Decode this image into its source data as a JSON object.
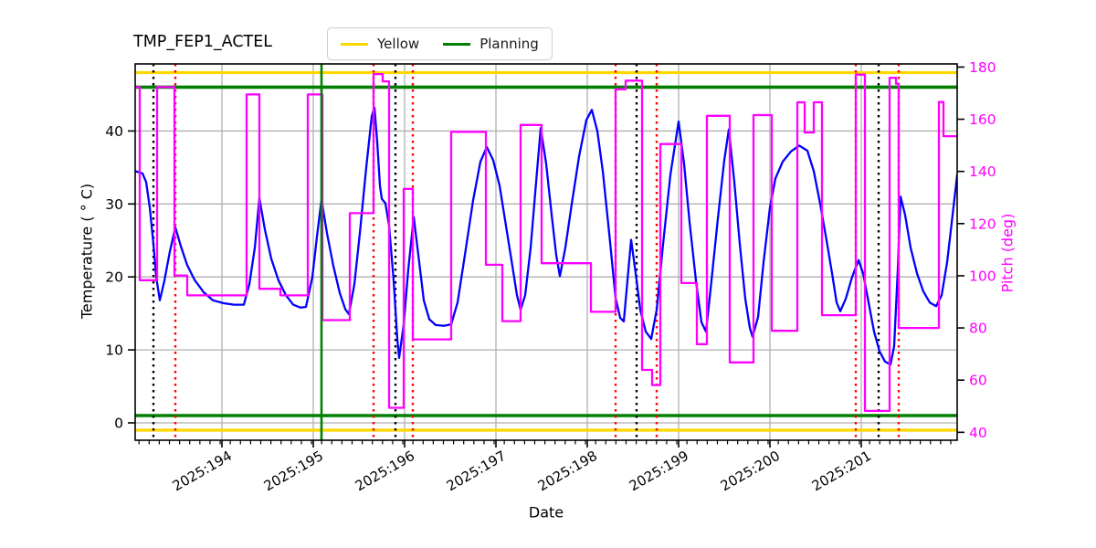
{
  "chart_data": {
    "type": "line",
    "title": "TMP_FEP1_ACTEL",
    "xlabel": "Date",
    "ylabel_left": "Temperature ( ° C)",
    "ylabel_right": "Pitch (deg)",
    "grid": true,
    "legend_position": "top-center",
    "legend": [
      {
        "label": "Yellow",
        "color": "#ffd700"
      },
      {
        "label": "Planning",
        "color": "#008000"
      }
    ],
    "colors": {
      "temperature_series": "#0000ff",
      "pitch_series": "#ff00ff",
      "yellow_limit": "#ffd700",
      "planning_limit": "#008000",
      "grid": "#b0b0b0",
      "vline_black": "#000000",
      "vline_red": "#ff0000",
      "vline_green": "#008000",
      "right_axis_text": "#ff00ff"
    },
    "x_domain": [
      193.05,
      202.05
    ],
    "y_left_domain": [
      -2.38,
      49.19
    ],
    "y_right_domain": [
      36.96,
      181.2
    ],
    "x_ticks": [
      {
        "day": 194,
        "label": "2025:194"
      },
      {
        "day": 195,
        "label": "2025:195"
      },
      {
        "day": 196,
        "label": "2025:196"
      },
      {
        "day": 197,
        "label": "2025:197"
      },
      {
        "day": 198,
        "label": "2025:198"
      },
      {
        "day": 199,
        "label": "2025:199"
      },
      {
        "day": 200,
        "label": "2025:200"
      },
      {
        "day": 201,
        "label": "2025:201"
      }
    ],
    "x_minor_step": 0.1111,
    "y_left_ticks": [
      0,
      10,
      20,
      30,
      40
    ],
    "y_right_ticks": [
      40,
      60,
      80,
      100,
      120,
      140,
      160,
      180
    ],
    "limit_lines": [
      {
        "name": "yellow-high",
        "value": 48.0,
        "axis": "left",
        "color": "#ffd700",
        "width": 3.2
      },
      {
        "name": "planning-high",
        "value": 46.0,
        "axis": "left",
        "color": "#008000",
        "width": 3.6
      },
      {
        "name": "planning-low",
        "value": 1.0,
        "axis": "left",
        "color": "#008000",
        "width": 3.6
      },
      {
        "name": "yellow-low",
        "value": -1.0,
        "axis": "left",
        "color": "#ffd700",
        "width": 3.2
      }
    ],
    "vlines_dotted": [
      {
        "day": 193.25,
        "color": "#000000"
      },
      {
        "day": 193.49,
        "color": "#ff0000"
      },
      {
        "day": 195.66,
        "color": "#ff0000"
      },
      {
        "day": 195.9,
        "color": "#000000"
      },
      {
        "day": 196.09,
        "color": "#ff0000"
      },
      {
        "day": 198.31,
        "color": "#ff0000"
      },
      {
        "day": 198.54,
        "color": "#000000"
      },
      {
        "day": 198.76,
        "color": "#ff0000"
      },
      {
        "day": 200.94,
        "color": "#ff0000"
      },
      {
        "day": 201.19,
        "color": "#000000"
      },
      {
        "day": 201.41,
        "color": "#ff0000"
      }
    ],
    "vline_solid_green": {
      "day": 195.09,
      "color": "#008000"
    },
    "series": [
      {
        "name": "Temperature",
        "axis": "left",
        "color": "#0000ff",
        "points": [
          [
            193.05,
            34.5
          ],
          [
            193.13,
            34.2
          ],
          [
            193.17,
            33.0
          ],
          [
            193.21,
            29.5
          ],
          [
            193.25,
            24.5
          ],
          [
            193.28,
            20.0
          ],
          [
            193.32,
            16.8
          ],
          [
            193.37,
            19.5
          ],
          [
            193.43,
            23.5
          ],
          [
            193.49,
            26.8
          ],
          [
            193.55,
            24.2
          ],
          [
            193.62,
            21.6
          ],
          [
            193.7,
            19.6
          ],
          [
            193.8,
            17.9
          ],
          [
            193.9,
            16.8
          ],
          [
            194.02,
            16.4
          ],
          [
            194.13,
            16.2
          ],
          [
            194.24,
            16.2
          ],
          [
            194.3,
            19.0
          ],
          [
            194.36,
            24.0
          ],
          [
            194.41,
            30.8
          ],
          [
            194.47,
            26.5
          ],
          [
            194.54,
            22.5
          ],
          [
            194.62,
            19.5
          ],
          [
            194.7,
            17.5
          ],
          [
            194.78,
            16.2
          ],
          [
            194.86,
            15.8
          ],
          [
            194.92,
            15.9
          ],
          [
            194.99,
            20.0
          ],
          [
            195.04,
            25.5
          ],
          [
            195.09,
            30.6
          ],
          [
            195.15,
            26.0
          ],
          [
            195.22,
            21.5
          ],
          [
            195.29,
            17.8
          ],
          [
            195.35,
            15.6
          ],
          [
            195.39,
            14.9
          ],
          [
            195.45,
            19.0
          ],
          [
            195.51,
            26.0
          ],
          [
            195.58,
            35.0
          ],
          [
            195.64,
            42.0
          ],
          [
            195.67,
            43.2
          ],
          [
            195.7,
            38.5
          ],
          [
            195.73,
            32.5
          ],
          [
            195.75,
            30.7
          ],
          [
            195.79,
            30.1
          ],
          [
            195.83,
            27.0
          ],
          [
            195.88,
            19.5
          ],
          [
            195.92,
            11.5
          ],
          [
            195.94,
            8.9
          ],
          [
            195.99,
            13.5
          ],
          [
            196.04,
            21.0
          ],
          [
            196.1,
            28.2
          ],
          [
            196.16,
            22.0
          ],
          [
            196.21,
            16.8
          ],
          [
            196.27,
            14.2
          ],
          [
            196.34,
            13.4
          ],
          [
            196.43,
            13.3
          ],
          [
            196.51,
            13.5
          ],
          [
            196.58,
            16.5
          ],
          [
            196.66,
            23.0
          ],
          [
            196.75,
            30.5
          ],
          [
            196.83,
            35.8
          ],
          [
            196.9,
            37.8
          ],
          [
            196.97,
            36.0
          ],
          [
            197.04,
            32.5
          ],
          [
            197.11,
            27.0
          ],
          [
            197.18,
            21.5
          ],
          [
            197.23,
            17.5
          ],
          [
            197.27,
            15.5
          ],
          [
            197.32,
            17.5
          ],
          [
            197.38,
            24.0
          ],
          [
            197.44,
            33.0
          ],
          [
            197.49,
            40.4
          ],
          [
            197.55,
            35.5
          ],
          [
            197.61,
            28.5
          ],
          [
            197.66,
            23.0
          ],
          [
            197.7,
            20.1
          ],
          [
            197.76,
            24.0
          ],
          [
            197.83,
            30.0
          ],
          [
            197.91,
            36.5
          ],
          [
            197.99,
            41.5
          ],
          [
            198.05,
            42.9
          ],
          [
            198.11,
            40.0
          ],
          [
            198.17,
            34.5
          ],
          [
            198.24,
            26.0
          ],
          [
            198.31,
            17.1
          ],
          [
            198.36,
            14.4
          ],
          [
            198.4,
            13.9
          ],
          [
            198.44,
            19.5
          ],
          [
            198.48,
            25.1
          ],
          [
            198.53,
            20.5
          ],
          [
            198.58,
            15.5
          ],
          [
            198.64,
            12.5
          ],
          [
            198.7,
            11.5
          ],
          [
            198.76,
            15.5
          ],
          [
            198.83,
            24.5
          ],
          [
            198.91,
            34.0
          ],
          [
            199.0,
            41.3
          ],
          [
            199.06,
            35.5
          ],
          [
            199.12,
            27.5
          ],
          [
            199.19,
            19.5
          ],
          [
            199.25,
            13.8
          ],
          [
            199.3,
            12.5
          ],
          [
            199.36,
            19.5
          ],
          [
            199.43,
            28.0
          ],
          [
            199.5,
            36.0
          ],
          [
            199.55,
            40.2
          ],
          [
            199.61,
            33.0
          ],
          [
            199.67,
            24.5
          ],
          [
            199.73,
            17.0
          ],
          [
            199.78,
            13.0
          ],
          [
            199.81,
            11.8
          ],
          [
            199.87,
            14.5
          ],
          [
            199.93,
            22.0
          ],
          [
            200.0,
            29.5
          ],
          [
            200.06,
            33.5
          ],
          [
            200.14,
            35.8
          ],
          [
            200.23,
            37.2
          ],
          [
            200.32,
            38.0
          ],
          [
            200.41,
            37.3
          ],
          [
            200.48,
            34.5
          ],
          [
            200.55,
            30.0
          ],
          [
            200.62,
            25.0
          ],
          [
            200.68,
            20.5
          ],
          [
            200.73,
            16.5
          ],
          [
            200.77,
            15.3
          ],
          [
            200.83,
            17.0
          ],
          [
            200.9,
            20.0
          ],
          [
            200.97,
            22.3
          ],
          [
            201.02,
            20.5
          ],
          [
            201.08,
            16.5
          ],
          [
            201.14,
            12.5
          ],
          [
            201.2,
            9.8
          ],
          [
            201.26,
            8.4
          ],
          [
            201.32,
            8.0
          ],
          [
            201.36,
            10.5
          ],
          [
            201.4,
            21.0
          ],
          [
            201.43,
            31.0
          ],
          [
            201.48,
            28.5
          ],
          [
            201.54,
            24.0
          ],
          [
            201.61,
            20.5
          ],
          [
            201.68,
            18.0
          ],
          [
            201.75,
            16.5
          ],
          [
            201.82,
            16.0
          ],
          [
            201.88,
            17.5
          ],
          [
            201.94,
            22.0
          ],
          [
            202.0,
            28.5
          ],
          [
            202.05,
            34.0
          ]
        ]
      },
      {
        "name": "Pitch",
        "axis": "right",
        "color": "#ff00ff",
        "points": [
          [
            193.05,
            172.3
          ],
          [
            193.1,
            172.3
          ],
          [
            193.1,
            98.3
          ],
          [
            193.29,
            98.3
          ],
          [
            193.29,
            172.3
          ],
          [
            193.48,
            172.3
          ],
          [
            193.48,
            100.1
          ],
          [
            193.62,
            100.1
          ],
          [
            193.62,
            92.5
          ],
          [
            194.27,
            92.5
          ],
          [
            194.27,
            169.5
          ],
          [
            194.41,
            169.5
          ],
          [
            194.41,
            95.0
          ],
          [
            194.64,
            95.0
          ],
          [
            194.64,
            92.5
          ],
          [
            194.94,
            92.5
          ],
          [
            194.94,
            169.5
          ],
          [
            195.1,
            169.5
          ],
          [
            195.1,
            83.0
          ],
          [
            195.4,
            83.0
          ],
          [
            195.4,
            124.0
          ],
          [
            195.66,
            124.0
          ],
          [
            195.66,
            177.3
          ],
          [
            195.76,
            177.3
          ],
          [
            195.76,
            174.5
          ],
          [
            195.83,
            174.5
          ],
          [
            195.83,
            49.4
          ],
          [
            195.99,
            49.4
          ],
          [
            195.99,
            133.3
          ],
          [
            196.09,
            133.3
          ],
          [
            196.09,
            75.6
          ],
          [
            196.51,
            75.6
          ],
          [
            196.51,
            155.2
          ],
          [
            196.89,
            155.2
          ],
          [
            196.89,
            104.2
          ],
          [
            197.07,
            104.2
          ],
          [
            197.07,
            82.6
          ],
          [
            197.27,
            82.6
          ],
          [
            197.27,
            157.8
          ],
          [
            197.5,
            157.8
          ],
          [
            197.5,
            104.8
          ],
          [
            198.04,
            104.8
          ],
          [
            198.04,
            86.2
          ],
          [
            198.31,
            86.2
          ],
          [
            198.31,
            171.5
          ],
          [
            198.42,
            171.5
          ],
          [
            198.42,
            174.8
          ],
          [
            198.6,
            174.8
          ],
          [
            198.6,
            63.9
          ],
          [
            198.71,
            63.9
          ],
          [
            198.71,
            58.1
          ],
          [
            198.8,
            58.1
          ],
          [
            198.8,
            150.5
          ],
          [
            199.03,
            150.5
          ],
          [
            199.03,
            97.2
          ],
          [
            199.2,
            97.2
          ],
          [
            199.2,
            73.8
          ],
          [
            199.31,
            73.8
          ],
          [
            199.31,
            161.3
          ],
          [
            199.56,
            161.3
          ],
          [
            199.56,
            66.8
          ],
          [
            199.82,
            66.8
          ],
          [
            199.82,
            161.6
          ],
          [
            200.02,
            161.6
          ],
          [
            200.02,
            78.9
          ],
          [
            200.3,
            78.9
          ],
          [
            200.3,
            166.5
          ],
          [
            200.38,
            166.5
          ],
          [
            200.38,
            154.9
          ],
          [
            200.48,
            154.9
          ],
          [
            200.48,
            166.5
          ],
          [
            200.57,
            166.5
          ],
          [
            200.57,
            84.9
          ],
          [
            200.94,
            84.9
          ],
          [
            200.94,
            177.1
          ],
          [
            201.04,
            177.1
          ],
          [
            201.04,
            48.2
          ],
          [
            201.31,
            48.2
          ],
          [
            201.31,
            175.9
          ],
          [
            201.38,
            175.9
          ],
          [
            201.38,
            173.6
          ],
          [
            201.41,
            173.6
          ],
          [
            201.41,
            80.0
          ],
          [
            201.85,
            80.0
          ],
          [
            201.85,
            166.6
          ],
          [
            201.9,
            166.6
          ],
          [
            201.9,
            153.5
          ],
          [
            202.05,
            153.5
          ]
        ]
      }
    ]
  }
}
